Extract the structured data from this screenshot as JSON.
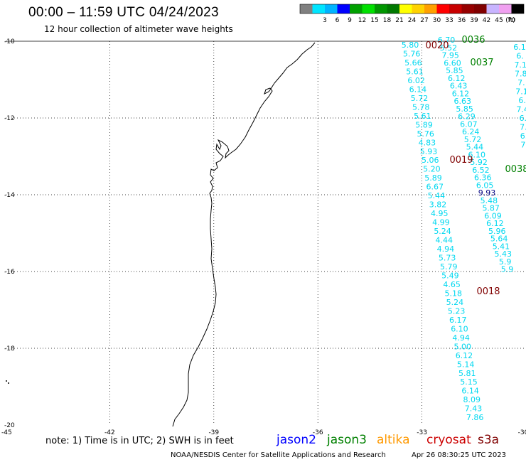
{
  "header": {
    "title": "00:00 – 11:59 UTC 04/24/2023",
    "subtitle": "12 hour collection of altimeter wave heights"
  },
  "colorbar": {
    "unit": "(ft)",
    "bins": [
      {
        "color": "#808080",
        "label": ""
      },
      {
        "color": "#00e5ff",
        "label": "3"
      },
      {
        "color": "#00b3ff",
        "label": "6"
      },
      {
        "color": "#0000ff",
        "label": "9"
      },
      {
        "color": "#00a000",
        "label": "12"
      },
      {
        "color": "#00e000",
        "label": "15"
      },
      {
        "color": "#009600",
        "label": "18"
      },
      {
        "color": "#007800",
        "label": "21"
      },
      {
        "color": "#ffff00",
        "label": "24"
      },
      {
        "color": "#ffd200",
        "label": "27"
      },
      {
        "color": "#ffa000",
        "label": "30"
      },
      {
        "color": "#ff0000",
        "label": "33"
      },
      {
        "color": "#c80000",
        "label": "36"
      },
      {
        "color": "#960000",
        "label": "39"
      },
      {
        "color": "#800000",
        "label": "42"
      },
      {
        "color": "#c8b4ff",
        "label": "45"
      },
      {
        "color": "#f0a0f0",
        "label": "70"
      },
      {
        "color": "#000000",
        "label": ""
      }
    ]
  },
  "map": {
    "lat_range": [
      -20,
      -10
    ],
    "lon_range": [
      -45,
      -30
    ],
    "lat_ticks": [
      "-10",
      "-12",
      "-14",
      "-16",
      "-18",
      "-20"
    ],
    "lon_ticks": [
      "-42",
      "-39",
      "-36",
      "-33",
      "-30"
    ],
    "corner_label": "-45"
  },
  "tracks": [
    {
      "name": "track-a",
      "color": "#00d8f0",
      "values": [
        "5.80",
        "5.76",
        "5.66",
        "5.61",
        "6.02",
        "6.14",
        "5.72",
        "5.78",
        "5.61",
        "5.89",
        "5.76",
        "4.83",
        "5.93",
        "5.06",
        "5.20",
        "5.89",
        "6.67",
        "5.44",
        "3.82",
        "4.95",
        "4.99",
        "5.24",
        "4.44",
        "4.94",
        "5.73",
        "5.79",
        "5.49",
        "4.65",
        "5.18",
        "5.24",
        "5.23",
        "6.17",
        "6.10",
        "4.94",
        "5.00",
        "6.12",
        "5.14",
        "5.81",
        "5.15",
        "6.14",
        "8.09",
        "7.43",
        "7.86"
      ]
    },
    {
      "name": "track-b",
      "color": "#00d8f0",
      "values": [
        "6.70",
        "5.52",
        "7.95",
        "6.60",
        "5.85",
        "6.12",
        "6.43",
        "6.12",
        "6.63",
        "5.85",
        "6.29",
        "6.07",
        "6.24",
        "5.72",
        "5.44",
        "6.10",
        "5.92",
        "6.52",
        "6.36",
        "6.05",
        "9.93",
        "5.48",
        "5.87",
        "6.09",
        "6.12",
        "5.96",
        "5.64",
        "5.41",
        "5.43",
        "5.9",
        "5.9"
      ]
    },
    {
      "name": "track-c",
      "color": "#00d8f0",
      "values": [
        "6.1",
        "6.",
        "7.1",
        "7.8",
        "7.",
        "7.1",
        "6.",
        "7.4",
        "6.",
        "7.",
        "6.",
        "7."
      ]
    }
  ],
  "pass_labels": [
    {
      "text": "0036",
      "color": "#008000"
    },
    {
      "text": "0020",
      "color": "#800000"
    },
    {
      "text": "0037",
      "color": "#008000"
    },
    {
      "text": "0019",
      "color": "#800000"
    },
    {
      "text": "0038",
      "color": "#008000"
    },
    {
      "text": "0018",
      "color": "#800000"
    }
  ],
  "footer": {
    "note": "note: 1) Time is in UTC; 2) SWH is in feet",
    "satellites": [
      {
        "name": "jason2",
        "color": "#0000ff"
      },
      {
        "name": "jason3",
        "color": "#008000"
      },
      {
        "name": "altika",
        "color": "#ff9900"
      },
      {
        "name": "cryosat",
        "color": "#cc0000"
      },
      {
        "name": "s3a",
        "color": "#800000"
      }
    ],
    "credit": "NOAA/NESDIS Center for Satellite Applications and Research",
    "generated": "Apr 26 08:30:25 UTC 2023"
  }
}
